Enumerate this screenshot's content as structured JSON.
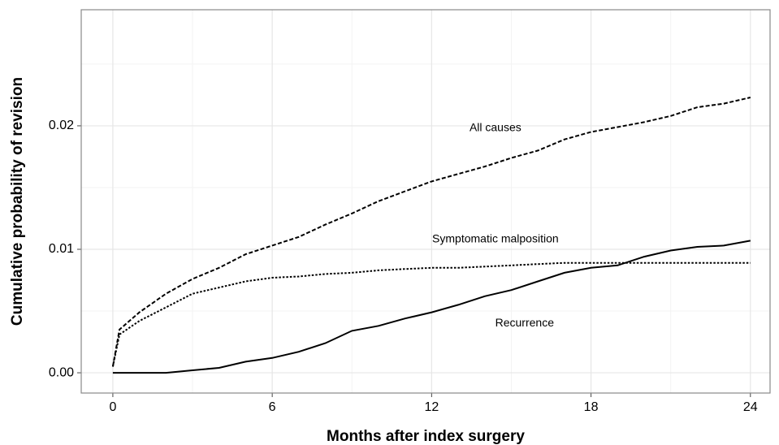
{
  "chart_data": {
    "type": "line",
    "xlabel": "Months after index surgery",
    "ylabel": "Cumulative probability of revision",
    "xlim": [
      -1.19,
      24.74
    ],
    "ylim": [
      -0.00164,
      0.0294
    ],
    "xticks": [
      0,
      6,
      12,
      18,
      24
    ],
    "yticks": [
      {
        "value": 0,
        "label": "0.00"
      },
      {
        "value": 0.01,
        "label": "0.01"
      },
      {
        "value": 0.02,
        "label": "0.02"
      }
    ],
    "grid": true,
    "x": [
      0,
      0.25,
      1,
      2,
      3,
      4,
      5,
      6,
      7,
      8,
      9,
      10,
      11,
      12,
      13,
      14,
      15,
      16,
      17,
      18,
      19,
      20,
      21,
      22,
      23,
      24
    ],
    "series": [
      {
        "name": "All causes",
        "color": "#000000",
        "line_style": "dashed",
        "values": [
          0.0005,
          0.0035,
          0.0049,
          0.0064,
          0.0076,
          0.0085,
          0.0096,
          0.0103,
          0.011,
          0.012,
          0.0129,
          0.0139,
          0.0147,
          0.0155,
          0.0161,
          0.0167,
          0.0174,
          0.018,
          0.0189,
          0.0195,
          0.0199,
          0.0203,
          0.0208,
          0.0215,
          0.0218,
          0.0223
        ]
      },
      {
        "name": "Symptomatic malposition",
        "color": "#000000",
        "line_style": "dotted",
        "values": [
          0.0005,
          0.0031,
          0.0042,
          0.0053,
          0.0064,
          0.0069,
          0.0074,
          0.0077,
          0.0078,
          0.008,
          0.0081,
          0.0083,
          0.0084,
          0.0085,
          0.0085,
          0.0086,
          0.0087,
          0.0088,
          0.0089,
          0.0089,
          0.0089,
          0.0089,
          0.0089,
          0.0089,
          0.0089,
          0.0089
        ]
      },
      {
        "name": "Recurrence",
        "color": "#000000",
        "line_style": "solid",
        "values": [
          0,
          0,
          0,
          0,
          0.0002,
          0.0004,
          0.0009,
          0.0012,
          0.0017,
          0.0024,
          0.0034,
          0.0038,
          0.0044,
          0.0049,
          0.0055,
          0.0062,
          0.0067,
          0.0074,
          0.0081,
          0.0085,
          0.0087,
          0.0094,
          0.0099,
          0.0102,
          0.0103,
          0.0107
        ]
      }
    ]
  }
}
